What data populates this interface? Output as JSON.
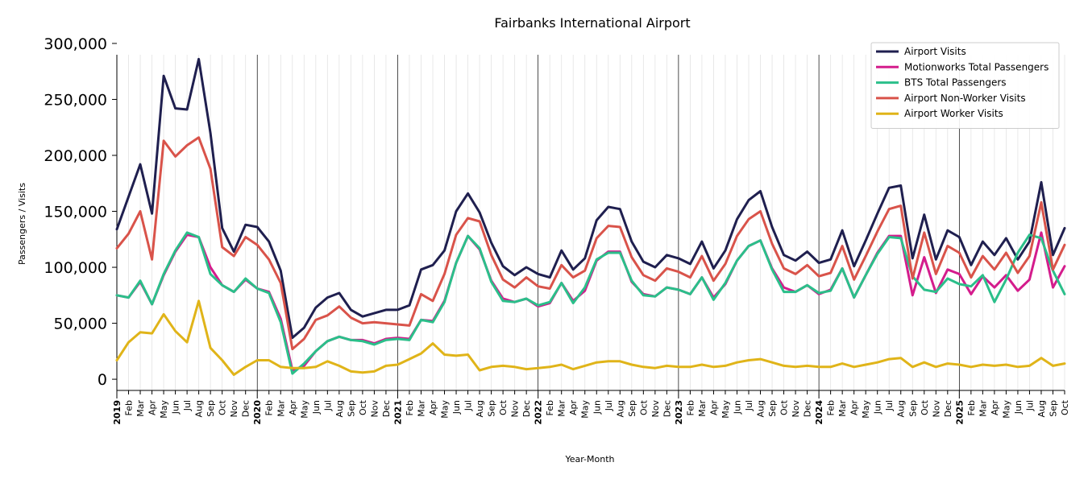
{
  "chart_data": {
    "type": "line",
    "title": "Fairbanks International Airport",
    "xlabel": "Year-Month",
    "ylabel": "Passengers / Visits",
    "ylim": [
      -10000,
      305000
    ],
    "yticks": [
      0,
      50000,
      100000,
      150000,
      200000,
      250000,
      300000
    ],
    "ytick_labels": [
      "0",
      "50,000",
      "100,000",
      "150,000",
      "200,000",
      "250,000",
      "300,000"
    ],
    "legend_position": "top-right",
    "grid": "vertical-monthly",
    "x": [
      "2019-01",
      "2019-02",
      "2019-03",
      "2019-04",
      "2019-05",
      "2019-06",
      "2019-07",
      "2019-08",
      "2019-09",
      "2019-10",
      "2019-11",
      "2019-12",
      "2020-01",
      "2020-02",
      "2020-03",
      "2020-04",
      "2020-05",
      "2020-06",
      "2020-07",
      "2020-08",
      "2020-09",
      "2020-10",
      "2020-11",
      "2020-12",
      "2021-01",
      "2021-02",
      "2021-03",
      "2021-04",
      "2021-05",
      "2021-06",
      "2021-07",
      "2021-08",
      "2021-09",
      "2021-10",
      "2021-11",
      "2021-12",
      "2022-01",
      "2022-02",
      "2022-03",
      "2022-04",
      "2022-05",
      "2022-06",
      "2022-07",
      "2022-08",
      "2022-09",
      "2022-10",
      "2022-11",
      "2022-12",
      "2023-01",
      "2023-02",
      "2023-03",
      "2023-04",
      "2023-05",
      "2023-06",
      "2023-07",
      "2023-08",
      "2023-09",
      "2023-10",
      "2023-11",
      "2023-12",
      "2024-01",
      "2024-02",
      "2024-03",
      "2024-04",
      "2024-05",
      "2024-06",
      "2024-07",
      "2024-08",
      "2024-09",
      "2024-10",
      "2024-11",
      "2024-12",
      "2025-01",
      "2025-02",
      "2025-03",
      "2025-04",
      "2025-05",
      "2025-06",
      "2025-07",
      "2025-08",
      "2025-09",
      "2025-10"
    ],
    "xtick_labels": [
      "2019",
      "Feb",
      "Mar",
      "Apr",
      "May",
      "Jun",
      "Jul",
      "Aug",
      "Sep",
      "Oct",
      "Nov",
      "Dec",
      "2020",
      "Feb",
      "Mar",
      "Apr",
      "May",
      "Jun",
      "Jul",
      "Aug",
      "Sep",
      "Oct",
      "Nov",
      "Dec",
      "2021",
      "Feb",
      "Mar",
      "Apr",
      "May",
      "Jun",
      "Jul",
      "Aug",
      "Sep",
      "Oct",
      "Nov",
      "Dec",
      "2022",
      "Feb",
      "Mar",
      "Apr",
      "May",
      "Jun",
      "Jul",
      "Aug",
      "Sep",
      "Oct",
      "Nov",
      "Dec",
      "2023",
      "Feb",
      "Mar",
      "Apr",
      "May",
      "Jun",
      "Jul",
      "Aug",
      "Sep",
      "Oct",
      "Nov",
      "Dec",
      "2024",
      "Feb",
      "Mar",
      "Apr",
      "May",
      "Jun",
      "Jul",
      "Aug",
      "Sep",
      "Oct",
      "Nov",
      "Dec",
      "2025",
      "Feb",
      "Mar",
      "Apr",
      "May",
      "Jun",
      "Jul",
      "Aug",
      "Sep",
      "Oct"
    ],
    "series": [
      {
        "name": "Airport Visits",
        "color": "#1f1f4f",
        "values": [
          134000,
          163000,
          192000,
          148000,
          271000,
          242000,
          241000,
          286000,
          220000,
          135000,
          114000,
          138000,
          136000,
          123000,
          97000,
          37000,
          46000,
          64000,
          73000,
          77000,
          62000,
          56000,
          59000,
          62000,
          62000,
          66000,
          98000,
          102000,
          115000,
          150000,
          166000,
          149000,
          122000,
          101000,
          93000,
          100000,
          94000,
          91000,
          115000,
          98000,
          108000,
          142000,
          154000,
          152000,
          123000,
          105000,
          100000,
          111000,
          108000,
          103000,
          123000,
          99000,
          115000,
          143000,
          160000,
          168000,
          136000,
          111000,
          106000,
          114000,
          104000,
          107000,
          133000,
          101000,
          124000,
          148000,
          171000,
          173000,
          108000,
          147000,
          107000,
          133000,
          127000,
          102000,
          123000,
          111000,
          126000,
          107000,
          123000,
          176000,
          111000,
          135000
        ]
      },
      {
        "name": "Motionworks Total Passengers",
        "color": "#d41c8c",
        "values": [
          75000,
          73000,
          87000,
          67000,
          93000,
          114000,
          129000,
          127000,
          100000,
          84000,
          78000,
          89000,
          81000,
          78000,
          54000,
          8000,
          12000,
          25000,
          34000,
          38000,
          35000,
          35000,
          32000,
          36000,
          37000,
          36000,
          53000,
          52000,
          70000,
          104000,
          128000,
          116000,
          88000,
          72000,
          69000,
          72000,
          65000,
          68000,
          86000,
          70000,
          79000,
          106000,
          114000,
          114000,
          87000,
          76000,
          74000,
          82000,
          80000,
          76000,
          91000,
          73000,
          85000,
          106000,
          119000,
          124000,
          99000,
          82000,
          78000,
          84000,
          76000,
          80000,
          99000,
          73000,
          93000,
          113000,
          128000,
          128000,
          75000,
          109000,
          77000,
          98000,
          94000,
          76000,
          92000,
          82000,
          93000,
          79000,
          89000,
          131000,
          82000,
          101000
        ]
      },
      {
        "name": "BTS Total Passengers",
        "color": "#2bbf8a",
        "values": [
          75000,
          73000,
          88000,
          67000,
          94000,
          115000,
          131000,
          127000,
          94000,
          84000,
          78000,
          90000,
          81000,
          77000,
          51000,
          5000,
          14000,
          25000,
          34000,
          38000,
          35000,
          34000,
          31000,
          35000,
          36000,
          35000,
          53000,
          51000,
          69000,
          104000,
          128000,
          117000,
          87000,
          70000,
          69000,
          72000,
          66000,
          69000,
          86000,
          68000,
          82000,
          107000,
          113000,
          113000,
          88000,
          75000,
          74000,
          82000,
          80000,
          76000,
          91000,
          71000,
          86000,
          106000,
          119000,
          124000,
          98000,
          78000,
          78000,
          84000,
          77000,
          79000,
          99000,
          73000,
          93000,
          112000,
          127000,
          126000,
          92000,
          80000,
          78000,
          90000,
          85000,
          83000,
          93000,
          69000,
          89000,
          113000,
          129000,
          126000,
          97000,
          76000
        ]
      },
      {
        "name": "Airport Non-Worker Visits",
        "color": "#d9534a",
        "values": [
          117000,
          130000,
          150000,
          107000,
          213000,
          199000,
          209000,
          216000,
          188000,
          118000,
          110000,
          127000,
          120000,
          107000,
          86000,
          27000,
          36000,
          53000,
          57000,
          65000,
          55000,
          50000,
          51000,
          50000,
          49000,
          48000,
          76000,
          70000,
          94000,
          129000,
          144000,
          141000,
          111000,
          89000,
          82000,
          91000,
          83000,
          81000,
          102000,
          91000,
          97000,
          126000,
          137000,
          136000,
          109000,
          93000,
          88000,
          99000,
          96000,
          91000,
          110000,
          88000,
          103000,
          128000,
          143000,
          150000,
          121000,
          99000,
          94000,
          102000,
          92000,
          95000,
          119000,
          89000,
          110000,
          132000,
          152000,
          155000,
          90000,
          131000,
          94000,
          119000,
          113000,
          91000,
          110000,
          98000,
          113000,
          95000,
          110000,
          158000,
          98000,
          120000
        ]
      },
      {
        "name": "Airport Worker Visits",
        "color": "#e0b419",
        "values": [
          17000,
          33000,
          42000,
          41000,
          58000,
          43000,
          33000,
          70000,
          28000,
          17000,
          4000,
          11000,
          17000,
          17000,
          11000,
          10000,
          10000,
          11000,
          16000,
          12000,
          7000,
          6000,
          7000,
          12000,
          13000,
          18000,
          23000,
          32000,
          22000,
          21000,
          22000,
          8000,
          11000,
          12000,
          11000,
          9000,
          10000,
          11000,
          13000,
          9000,
          12000,
          15000,
          16000,
          16000,
          13000,
          11000,
          10000,
          12000,
          11000,
          11000,
          13000,
          11000,
          12000,
          15000,
          17000,
          18000,
          15000,
          12000,
          11000,
          12000,
          11000,
          11000,
          14000,
          11000,
          13000,
          15000,
          18000,
          19000,
          11000,
          15000,
          11000,
          14000,
          13000,
          11000,
          13000,
          12000,
          13000,
          11000,
          12000,
          19000,
          12000,
          14000
        ]
      }
    ]
  }
}
